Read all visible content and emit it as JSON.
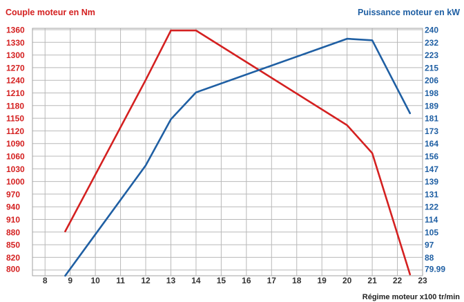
{
  "colors": {
    "torque": "#d42020",
    "power": "#1f5fa3",
    "grid": "#b8b8b8",
    "xtick": "#333333"
  },
  "chart_data": {
    "type": "line",
    "title": "",
    "left_axis_label": "Couple moteur en Nm",
    "right_axis_label": "Puissance moteur en kW",
    "xlabel": "Régime moteur x100 tr/min",
    "xlim": [
      7.5,
      23
    ],
    "left_ylim": [
      790,
      1365
    ],
    "right_ylim": [
      76,
      242
    ],
    "grid": true,
    "x_ticks": [
      "8",
      "9",
      "10",
      "11",
      "12",
      "13",
      "14",
      "15",
      "16",
      "17",
      "18",
      "19",
      "20",
      "21",
      "22",
      "23"
    ],
    "left_ticks": [
      "1360",
      "1330",
      "1300",
      "1270",
      "1240",
      "1210",
      "1180",
      "1150",
      "1120",
      "1090",
      "1060",
      "1030",
      "1000",
      "970",
      "940",
      "910",
      "880",
      "850",
      "820",
      "800"
    ],
    "right_ticks": [
      "240",
      "232",
      "223",
      "215",
      "206",
      "198",
      "189",
      "181",
      "173",
      "164",
      "156",
      "147",
      "139",
      "131",
      "122",
      "114",
      "105",
      "97",
      "88",
      "79.99"
    ],
    "series": [
      {
        "axis": "left",
        "x": [
          8.8,
          12,
          13,
          14,
          20,
          21,
          22.5
        ],
        "y": [
          893,
          1245,
          1360,
          1360,
          1140,
          1075,
          793
        ]
      },
      {
        "axis": "right",
        "x": [
          8.8,
          12,
          13,
          14,
          20,
          21,
          22.5
        ],
        "y": [
          76,
          150,
          181,
          199,
          235,
          234,
          185
        ]
      }
    ]
  }
}
